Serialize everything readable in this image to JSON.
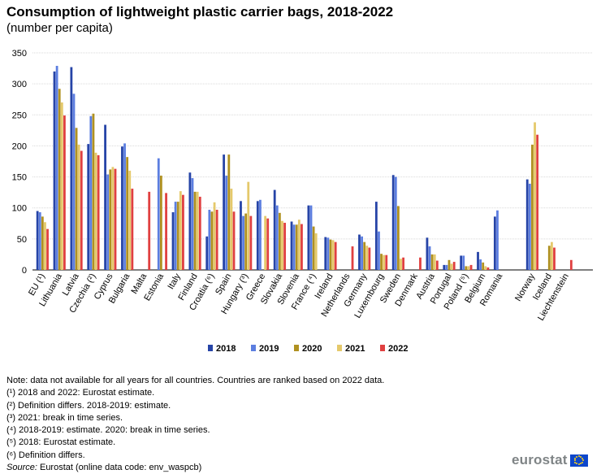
{
  "header": {
    "title": "Consumption of lightweight plastic carrier bags, 2018-2022",
    "subtitle": "(number per capita)"
  },
  "chart_data": {
    "type": "bar",
    "title": "Consumption of lightweight plastic carrier bags, 2018-2022",
    "subtitle": "(number per capita)",
    "xlabel": "",
    "ylabel": "",
    "ylim": [
      0,
      350
    ],
    "yticks": [
      "0",
      "50",
      "100",
      "150",
      "200",
      "250",
      "300",
      "350"
    ],
    "grid": true,
    "legend_position": "bottom",
    "categories": [
      "EU (¹)",
      "Lithuania",
      "Latvia",
      "Czechia (²)",
      "Cyprus",
      "Bulgaria",
      "Malta",
      "Estonia",
      "Italy",
      "Finland",
      "Croatia (⁶)",
      "Spain",
      "Hungary (³)",
      "Greece",
      "Slovakia",
      "Slovenia",
      "France (⁴)",
      "Ireland",
      "Netherlands",
      "Germany",
      "Luxembourg",
      "Sweden",
      "Denmark",
      "Austria",
      "Portugal",
      "Poland (⁵)",
      "Belgium",
      "Romania",
      "Norway",
      "Iceland",
      "Liechtenstein"
    ],
    "group_break_after": [
      "Romania"
    ],
    "series": [
      {
        "name": "2018",
        "color": "#2644a7",
        "values": [
          95,
          320,
          327,
          203,
          234,
          199,
          null,
          null,
          93,
          157,
          54,
          186,
          111,
          111,
          129,
          78,
          104,
          53,
          null,
          57,
          110,
          153,
          null,
          52,
          8,
          23,
          29,
          86,
          146,
          null,
          null
        ]
      },
      {
        "name": "2019",
        "color": "#5c7ee0",
        "values": [
          93,
          329,
          284,
          248,
          154,
          204,
          null,
          180,
          110,
          148,
          97,
          152,
          87,
          113,
          104,
          73,
          104,
          52,
          null,
          54,
          62,
          150,
          null,
          38,
          8,
          23,
          17,
          96,
          139,
          null,
          null
        ]
      },
      {
        "name": "2020",
        "color": "#b09120",
        "values": [
          86,
          292,
          229,
          252,
          162,
          182,
          null,
          152,
          110,
          126,
          94,
          186,
          91,
          null,
          92,
          73,
          70,
          49,
          null,
          45,
          26,
          103,
          null,
          25,
          16,
          6,
          12,
          null,
          202,
          39,
          null
        ]
      },
      {
        "name": "2021",
        "color": "#e5c96b",
        "values": [
          77,
          270,
          202,
          189,
          166,
          160,
          null,
          null,
          127,
          126,
          109,
          131,
          142,
          87,
          79,
          81,
          59,
          48,
          null,
          39,
          24,
          18,
          null,
          25,
          10,
          6,
          6,
          null,
          238,
          45,
          null
        ]
      },
      {
        "name": "2022",
        "color": "#e04040",
        "values": [
          66,
          249,
          192,
          185,
          163,
          131,
          126,
          124,
          121,
          118,
          97,
          94,
          87,
          83,
          76,
          74,
          null,
          45,
          38,
          36,
          24,
          20,
          20,
          15,
          13,
          8,
          4,
          null,
          218,
          36,
          16
        ]
      }
    ]
  },
  "notes": [
    "Note: data not available for all years for all countries. Countries are ranked based on 2022 data.",
    "(¹) 2018 and 2022: Eurostat estimate.",
    "(²) Definition differs. 2018-2019: estimate.",
    "(³) 2021: break in time series.",
    "(⁴) 2018-2019: estimate. 2020: break in time series.",
    "(⁵) 2018: Eurostat estimate.",
    "(⁶) Definition differs."
  ],
  "source": {
    "label": "Source:",
    "text": " Eurostat (online data code: env_waspcb)"
  },
  "logo": {
    "text": "eurostat",
    "flag_icon": "eu-flag-icon"
  }
}
